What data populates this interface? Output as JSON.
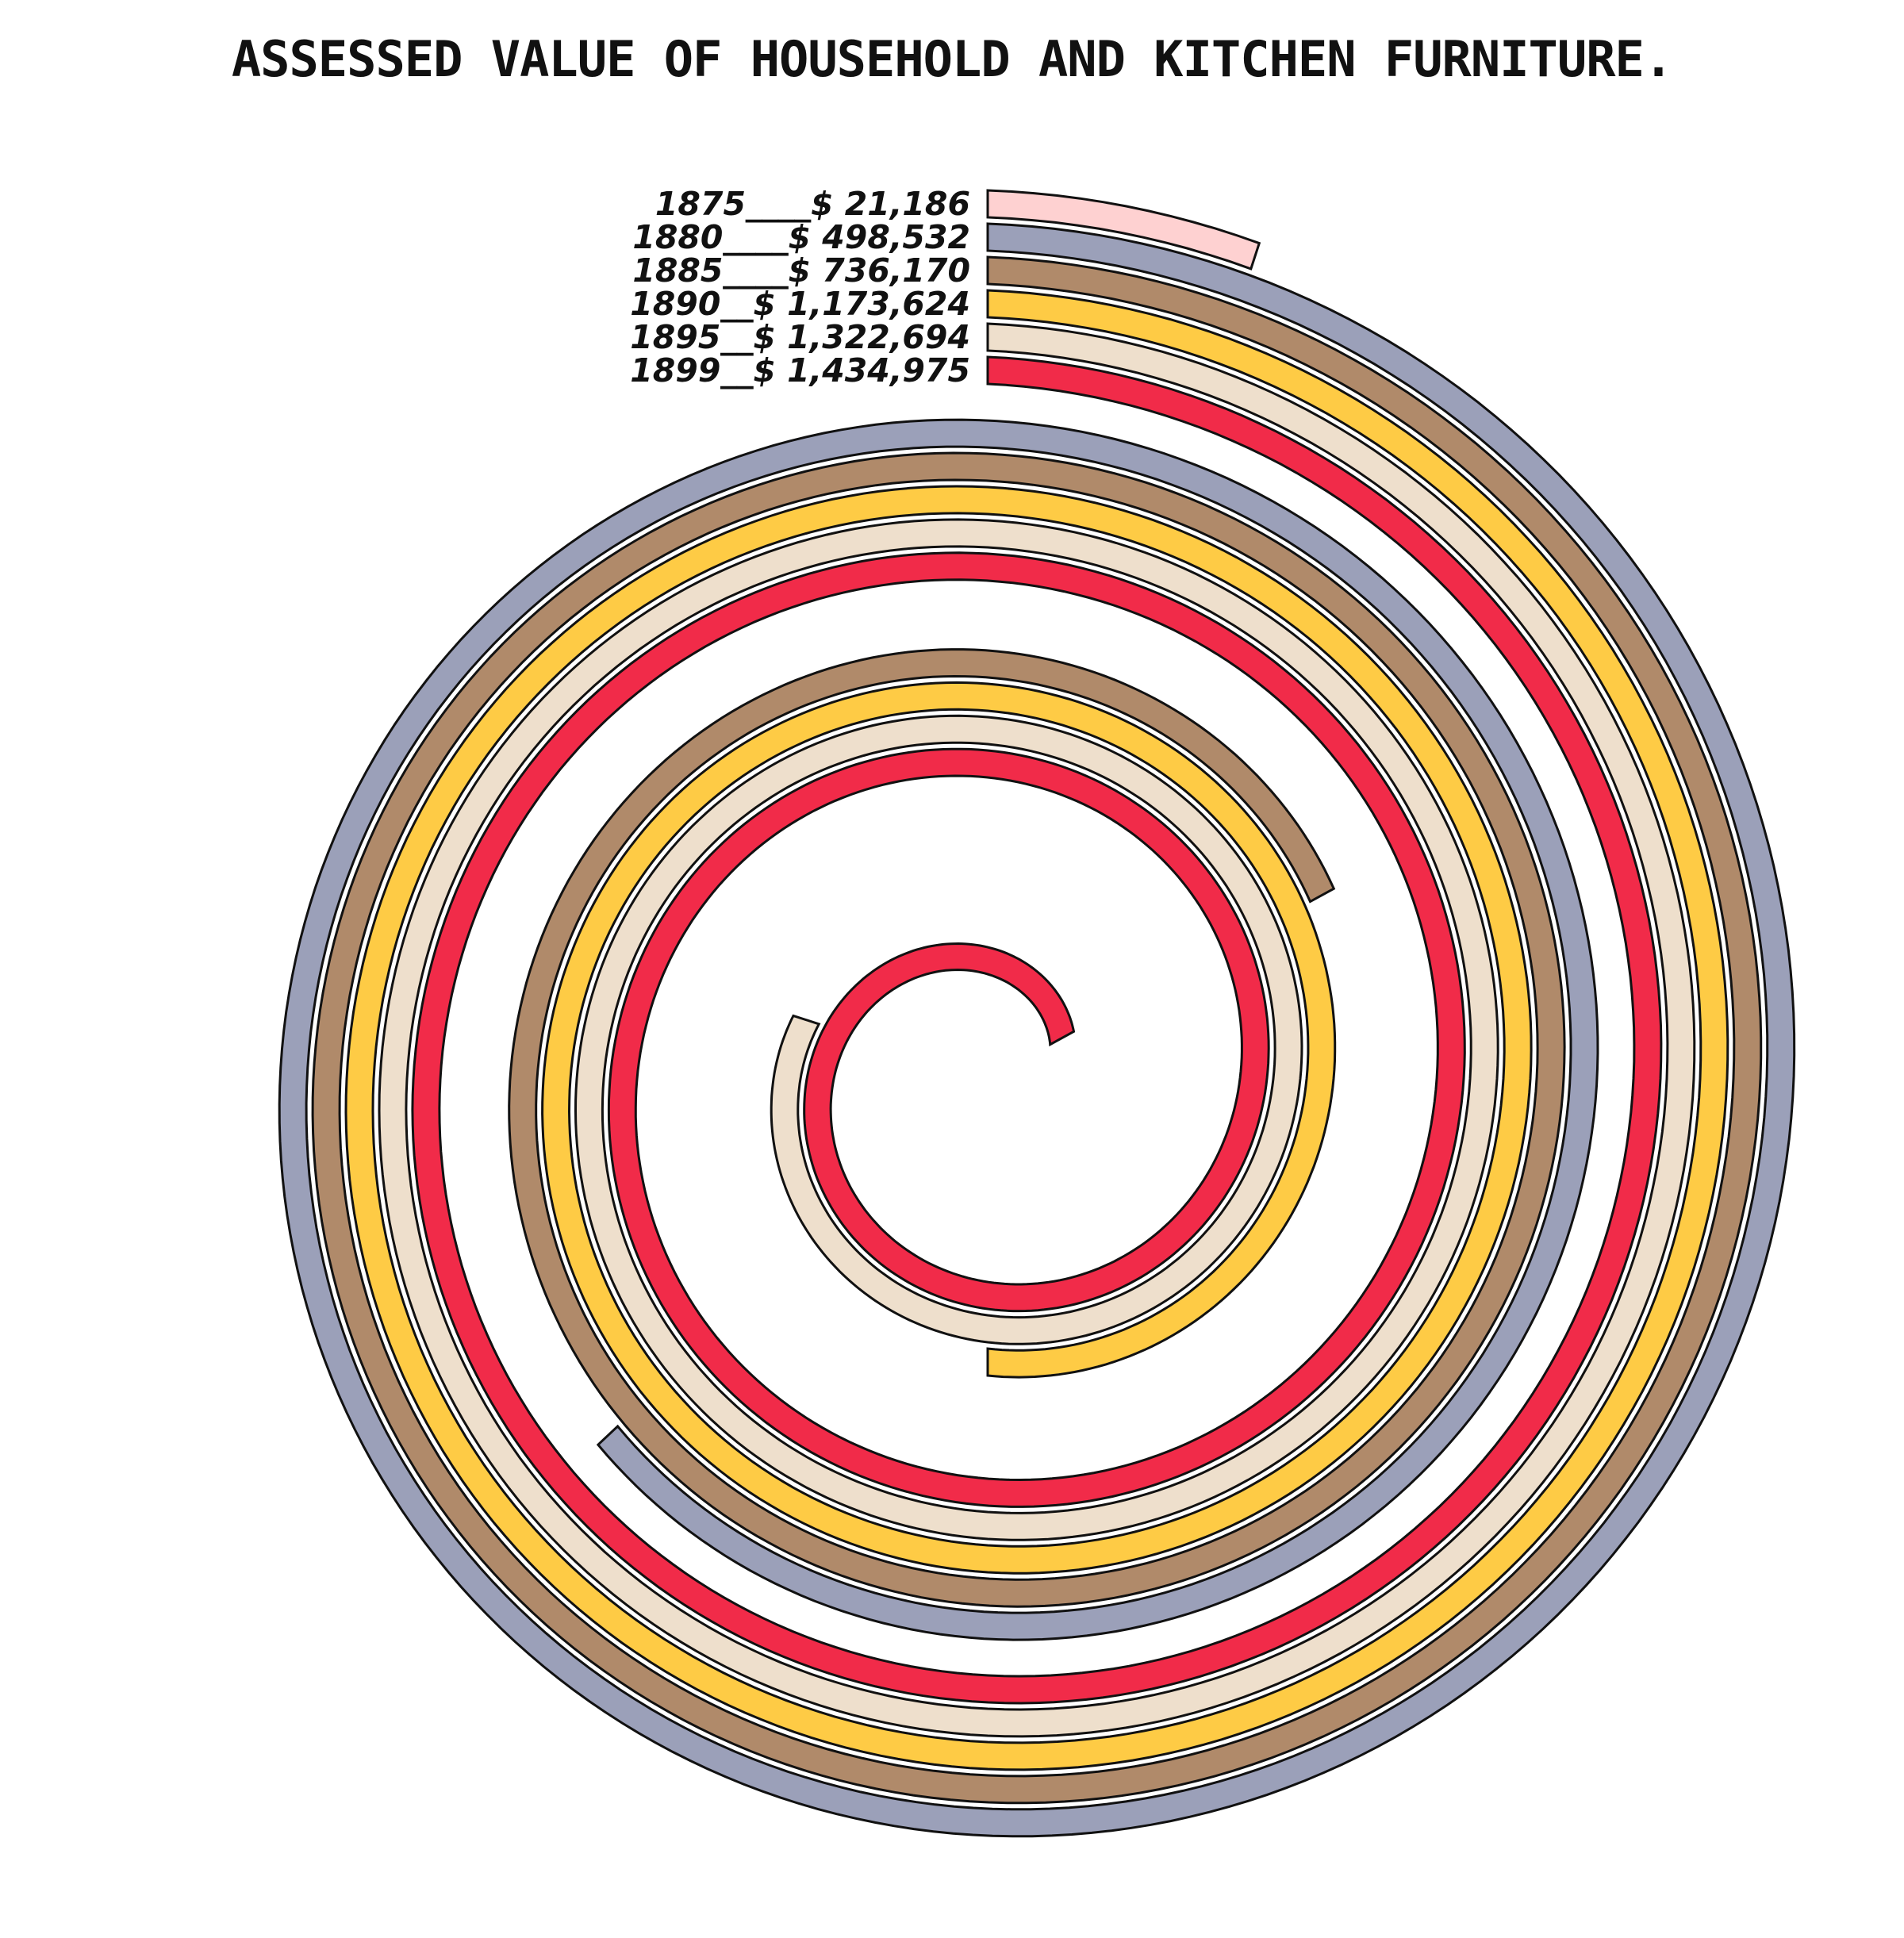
{
  "chart_data": {
    "type": "spiral-bar",
    "title": "ASSESSED VALUE OF HOUSEHOLD AND KITCHEN FURNITURE.",
    "series": [
      {
        "year": "1875",
        "value": 21186,
        "label": "1875____$ 21,186",
        "color": "#fed1d1",
        "turns": 0.05
      },
      {
        "year": "1880",
        "value": 498532,
        "label": "1880____$ 498,532",
        "color": "#9ba0b9",
        "turns": 1.63
      },
      {
        "year": "1885",
        "value": 736170,
        "label": "1885____$ 736,170",
        "color": "#b08a6a",
        "turns": 2.17
      },
      {
        "year": "1890",
        "value": 1173624,
        "label": "1890__$ 1,173,624",
        "color": "#fecb45",
        "turns": 2.5
      },
      {
        "year": "1895",
        "value": 1322694,
        "label": "1895__$ 1,322,694",
        "color": "#eedfcc",
        "turns": 2.8
      },
      {
        "year": "1899",
        "value": 1434975,
        "label": "1899__$ 1,434,975",
        "color": "#f12b49",
        "turns": 3.17
      }
    ]
  }
}
